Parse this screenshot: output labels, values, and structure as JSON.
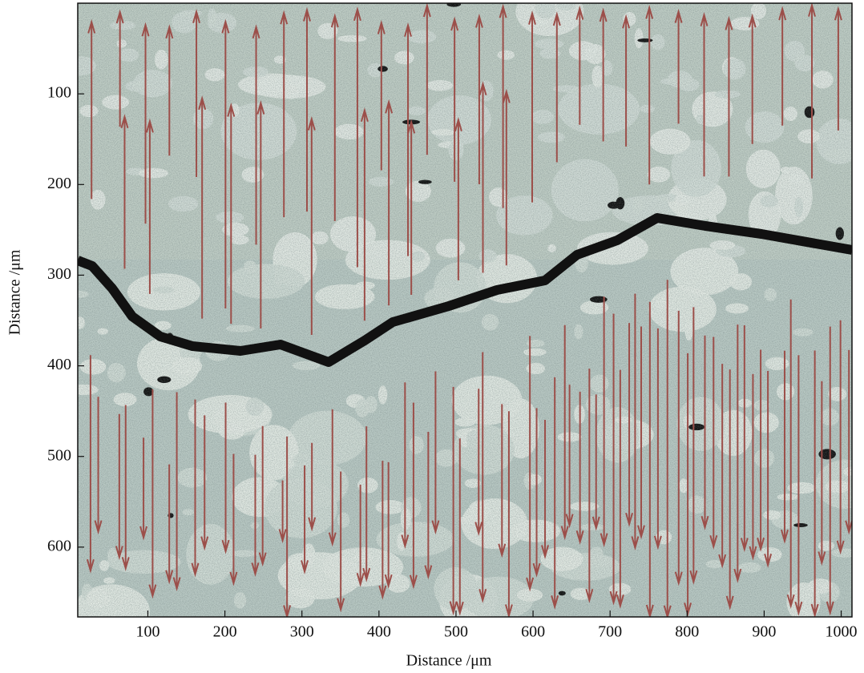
{
  "chart_data": {
    "type": "image",
    "xlabel": "Distance /μm",
    "ylabel": "Distance /μm",
    "xlim": [
      9,
      1014
    ],
    "ylim": [
      0,
      677
    ],
    "y_inverted": true,
    "xticks": [
      100,
      200,
      300,
      400,
      500,
      600,
      700,
      800,
      900,
      1000
    ],
    "yticks": [
      100,
      200,
      300,
      400,
      500,
      600
    ]
  }
}
